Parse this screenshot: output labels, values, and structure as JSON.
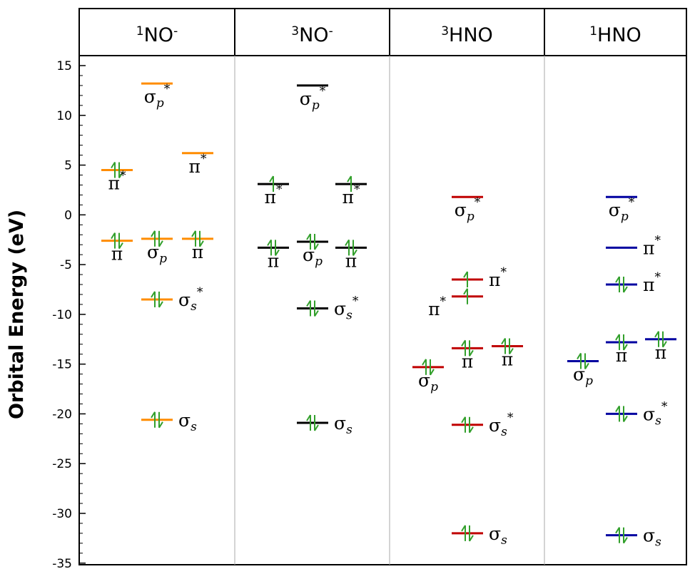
{
  "chart_data": {
    "type": "energy-level-diagram",
    "ylabel": "Orbital Energy  (eV)",
    "ylim": [
      -35,
      16
    ],
    "yticks": [
      "15",
      "10",
      "5",
      "0",
      "-5",
      "-10",
      "-15",
      "-20",
      "-25",
      "-30",
      "-35"
    ],
    "electron_color": "#33a02c",
    "panels": [
      {
        "name": "1NO-",
        "header_sup": "1",
        "header_main": "NO",
        "header_charge": "-",
        "color": "#ff8c00",
        "levels": [
          {
            "energy": 13.2,
            "slot": 2,
            "electrons": "none",
            "label": {
              "base": "σ",
              "sub": "p",
              "sup": "*"
            },
            "label_pos": "below"
          },
          {
            "energy": 6.2,
            "slot": 3,
            "electrons": "none",
            "label": {
              "base": "π",
              "sub": "",
              "sup": "*"
            },
            "label_pos": "below"
          },
          {
            "energy": 4.5,
            "slot": 1,
            "electrons": "pair",
            "label": {
              "base": "π",
              "sub": "",
              "sup": "*"
            },
            "label_pos": "below"
          },
          {
            "energy": -2.6,
            "slot": 1,
            "electrons": "pair",
            "label": {
              "base": "π",
              "sub": "",
              "sup": ""
            },
            "label_pos": "below"
          },
          {
            "energy": -2.4,
            "slot": 2,
            "electrons": "pair",
            "label": {
              "base": "σ",
              "sub": "p",
              "sup": ""
            },
            "label_pos": "below"
          },
          {
            "energy": -2.4,
            "slot": 3,
            "electrons": "pair",
            "label": {
              "base": "π",
              "sub": "",
              "sup": ""
            },
            "label_pos": "below"
          },
          {
            "energy": -8.5,
            "slot": 2,
            "electrons": "pair",
            "label": {
              "base": "σ",
              "sub": "s",
              "sup": "*"
            },
            "label_pos": "right"
          },
          {
            "energy": -20.6,
            "slot": 2,
            "electrons": "pair",
            "label": {
              "base": "σ",
              "sub": "s",
              "sup": ""
            },
            "label_pos": "right"
          }
        ]
      },
      {
        "name": "3NO-",
        "header_sup": "3",
        "header_main": "NO",
        "header_charge": "-",
        "color": "#000000",
        "levels": [
          {
            "energy": 13.0,
            "slot": 2,
            "electrons": "none",
            "label": {
              "base": "σ",
              "sub": "p",
              "sup": "*"
            },
            "label_pos": "below"
          },
          {
            "energy": 3.1,
            "slot": 1,
            "electrons": "single",
            "label": {
              "base": "π",
              "sub": "",
              "sup": "*"
            },
            "label_pos": "below"
          },
          {
            "energy": 3.1,
            "slot": 3,
            "electrons": "single",
            "label": {
              "base": "π",
              "sub": "",
              "sup": "*"
            },
            "label_pos": "below"
          },
          {
            "energy": -3.3,
            "slot": 1,
            "electrons": "pair",
            "label": {
              "base": "π",
              "sub": "",
              "sup": ""
            },
            "label_pos": "below"
          },
          {
            "energy": -2.7,
            "slot": 2,
            "electrons": "pair",
            "label": {
              "base": "σ",
              "sub": "p",
              "sup": ""
            },
            "label_pos": "below"
          },
          {
            "energy": -3.3,
            "slot": 3,
            "electrons": "pair",
            "label": {
              "base": "π",
              "sub": "",
              "sup": ""
            },
            "label_pos": "below"
          },
          {
            "energy": -9.4,
            "slot": 2,
            "electrons": "pair",
            "label": {
              "base": "σ",
              "sub": "s",
              "sup": "*"
            },
            "label_pos": "right"
          },
          {
            "energy": -20.9,
            "slot": 2,
            "electrons": "pair",
            "label": {
              "base": "σ",
              "sub": "s",
              "sup": ""
            },
            "label_pos": "right"
          }
        ]
      },
      {
        "name": "3HNO",
        "header_sup": "3",
        "header_main": "HNO",
        "header_charge": "",
        "color": "#c00000",
        "levels": [
          {
            "energy": 1.8,
            "slot": 2,
            "electrons": "none",
            "label": {
              "base": "σ",
              "sub": "p",
              "sup": "*"
            },
            "label_pos": "below"
          },
          {
            "energy": -6.5,
            "slot": 2,
            "electrons": "single",
            "label": {
              "base": "π",
              "sub": "",
              "sup": "*"
            },
            "label_pos": "right"
          },
          {
            "energy": -8.2,
            "slot": 2,
            "electrons": "single",
            "label": {
              "base": "π",
              "sub": "",
              "sup": "*"
            },
            "label_pos": "left"
          },
          {
            "energy": -13.4,
            "slot": 2,
            "electrons": "pair",
            "label": {
              "base": "π",
              "sub": "",
              "sup": ""
            },
            "label_pos": "below"
          },
          {
            "energy": -13.2,
            "slot": 3,
            "electrons": "pair",
            "label": {
              "base": "π",
              "sub": "",
              "sup": ""
            },
            "label_pos": "below"
          },
          {
            "energy": -15.3,
            "slot": 1,
            "electrons": "pair",
            "label": {
              "base": "σ",
              "sub": "p",
              "sup": ""
            },
            "label_pos": "below"
          },
          {
            "energy": -21.1,
            "slot": 2,
            "electrons": "pair",
            "label": {
              "base": "σ",
              "sub": "s",
              "sup": "*"
            },
            "label_pos": "right"
          },
          {
            "energy": -32.0,
            "slot": 2,
            "electrons": "pair",
            "label": {
              "base": "σ",
              "sub": "s",
              "sup": ""
            },
            "label_pos": "right"
          }
        ]
      },
      {
        "name": "1HNO",
        "header_sup": "1",
        "header_main": "HNO",
        "header_charge": "",
        "color": "#0000a0",
        "levels": [
          {
            "energy": 1.8,
            "slot": 2,
            "electrons": "none",
            "label": {
              "base": "σ",
              "sub": "p",
              "sup": "*"
            },
            "label_pos": "below"
          },
          {
            "energy": -3.3,
            "slot": 2,
            "electrons": "none",
            "label": {
              "base": "π",
              "sub": "",
              "sup": "*"
            },
            "label_pos": "right"
          },
          {
            "energy": -7.0,
            "slot": 2,
            "electrons": "pair",
            "label": {
              "base": "π",
              "sub": "",
              "sup": "*"
            },
            "label_pos": "right"
          },
          {
            "energy": -12.8,
            "slot": 2,
            "electrons": "pair",
            "label": {
              "base": "π",
              "sub": "",
              "sup": ""
            },
            "label_pos": "below"
          },
          {
            "energy": -12.5,
            "slot": 3,
            "electrons": "pair",
            "label": {
              "base": "π",
              "sub": "",
              "sup": ""
            },
            "label_pos": "below"
          },
          {
            "energy": -14.7,
            "slot": 1,
            "electrons": "pair",
            "label": {
              "base": "σ",
              "sub": "p",
              "sup": ""
            },
            "label_pos": "below"
          },
          {
            "energy": -20.0,
            "slot": 2,
            "electrons": "pair",
            "label": {
              "base": "σ",
              "sub": "s",
              "sup": "*"
            },
            "label_pos": "right"
          },
          {
            "energy": -32.2,
            "slot": 2,
            "electrons": "pair",
            "label": {
              "base": "σ",
              "sub": "s",
              "sup": ""
            },
            "label_pos": "right"
          }
        ]
      }
    ]
  }
}
